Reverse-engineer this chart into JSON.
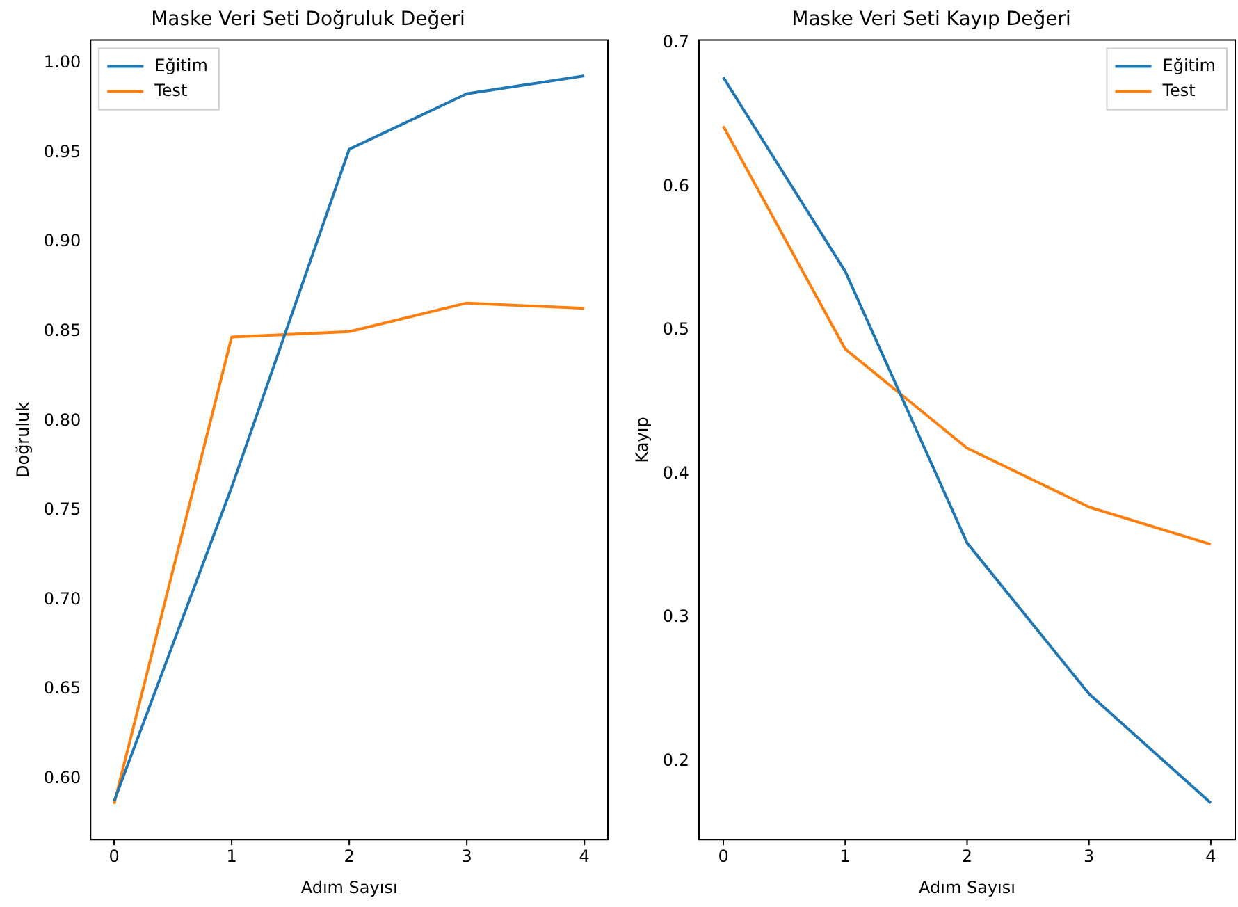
{
  "chart_data": [
    {
      "type": "line",
      "title": "Maske Veri Seti Doğruluk Değeri",
      "xlabel": "Adım Sayısı",
      "ylabel": "Doğruluk",
      "x": [
        0,
        1,
        2,
        3,
        4
      ],
      "series": [
        {
          "name": "Eğitim",
          "color": "#1f77b4",
          "values": [
            0.5875,
            0.763,
            0.952,
            0.983,
            0.993
          ]
        },
        {
          "name": "Test",
          "color": "#ff7f0e",
          "values": [
            0.586,
            0.847,
            0.85,
            0.866,
            0.863
          ]
        }
      ],
      "xlim": [
        -0.2,
        4.2
      ],
      "xticks": [
        0,
        1,
        2,
        3,
        4
      ],
      "ylim": [
        0.566,
        1.013
      ],
      "yticks": [
        {
          "value": 0.6,
          "label": "0.60"
        },
        {
          "value": 0.65,
          "label": "0.65"
        },
        {
          "value": 0.7,
          "label": "0.70"
        },
        {
          "value": 0.75,
          "label": "0.75"
        },
        {
          "value": 0.8,
          "label": "0.80"
        },
        {
          "value": 0.85,
          "label": "0.85"
        },
        {
          "value": 0.9,
          "label": "0.90"
        },
        {
          "value": 0.95,
          "label": "0.95"
        },
        {
          "value": 1,
          "label": "1.00"
        }
      ],
      "legend": "top left",
      "grid": false,
      "marker": "none",
      "line_style": "solid"
    },
    {
      "type": "line",
      "title": "Maske Veri Seti Kayıp Değeri",
      "xlabel": "Adım Sayısı",
      "ylabel": "Kayıp",
      "x": [
        0,
        1,
        2,
        3,
        4
      ],
      "series": [
        {
          "name": "Eğitim",
          "color": "#1f77b4",
          "values": [
            0.676,
            0.541,
            0.352,
            0.247,
            0.171
          ]
        },
        {
          "name": "Test",
          "color": "#ff7f0e",
          "values": [
            0.642,
            0.487,
            0.418,
            0.377,
            0.351
          ]
        }
      ],
      "xlim": [
        -0.2,
        4.2
      ],
      "xticks": [
        0,
        1,
        2,
        3,
        4
      ],
      "ylim": [
        0.1455,
        0.702
      ],
      "yticks": [
        0.2,
        0.3,
        0.4,
        0.5,
        0.6,
        0.7
      ],
      "legend": "top right",
      "grid": false,
      "marker": "none",
      "line_style": "solid"
    }
  ]
}
